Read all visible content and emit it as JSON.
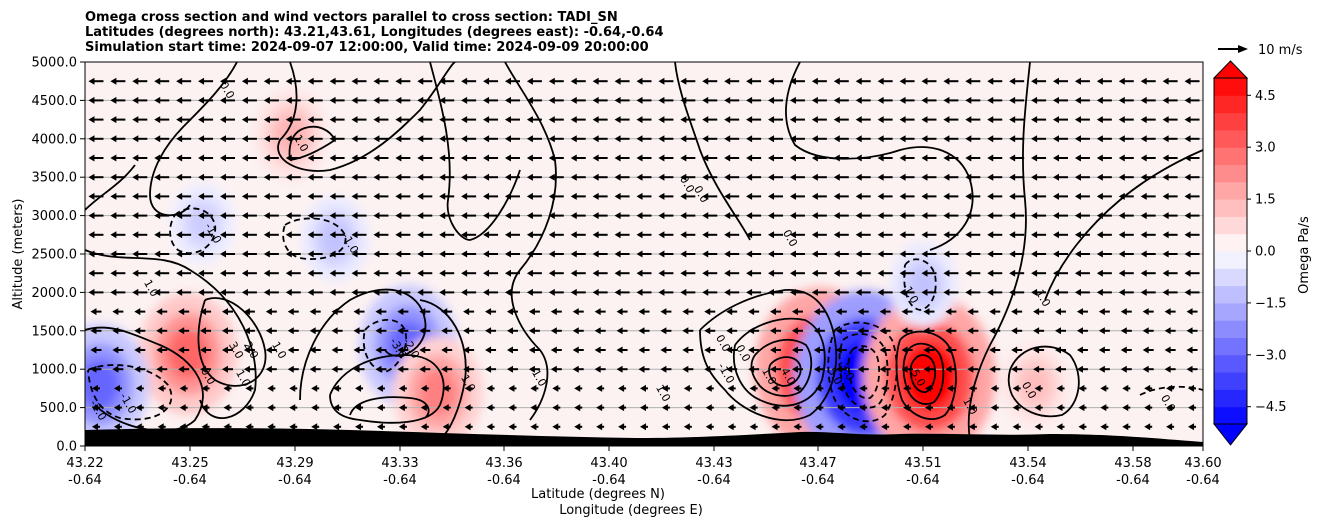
{
  "chart_data": {
    "type": "contour",
    "title_lines": [
      "Omega cross section and wind vectors parallel to cross section: TADI_SN",
      "Latitudes (degrees north): 43.21,43.61, Longitudes (degrees east): -0.64,-0.64",
      "Simulation start time: 2024-09-07 12:00:00, Valid time: 2024-09-09 20:00:00"
    ],
    "ylabel": "Altitude (meters)",
    "xlabel_lines": [
      "Latitude (degrees N)",
      "Longitude (degrees E)"
    ],
    "ylim": [
      0,
      5000
    ],
    "xlim": [
      43.22,
      43.6
    ],
    "y_ticks": [
      0,
      500,
      1000,
      1500,
      2000,
      2500,
      3000,
      3500,
      4000,
      4500,
      5000
    ],
    "y_tick_labels": [
      "0.0",
      "500.0",
      "1000.0",
      "1500.0",
      "2000.0",
      "2500.0",
      "3000.0",
      "3500.0",
      "4000.0",
      "4500.0",
      "5000.0"
    ],
    "x_ticks": [
      43.22,
      43.25,
      43.29,
      43.33,
      43.36,
      43.4,
      43.43,
      43.47,
      43.51,
      43.54,
      43.58,
      43.6
    ],
    "x_tick_labels": [
      "43.22",
      "43.25",
      "43.29",
      "43.33",
      "43.36",
      "43.40",
      "43.43",
      "43.47",
      "43.51",
      "43.54",
      "43.58",
      "43.60"
    ],
    "x_tick_sublabels": [
      "-0.64",
      "-0.64",
      "-0.64",
      "-0.64",
      "-0.64",
      "-0.64",
      "-0.64",
      "-0.64",
      "-0.64",
      "-0.64",
      "-0.64",
      "-0.64"
    ],
    "grid": "horizontal",
    "colorbar": {
      "label": "Omega Pa/s",
      "range": [
        -5.0,
        5.0
      ],
      "ticks": [
        4.5,
        3.0,
        1.5,
        0.0,
        -1.5,
        -3.0,
        -4.5
      ],
      "tick_labels": [
        "4.5",
        "3.0",
        "1.5",
        "0.0",
        "−1.5",
        "−3.0",
        "−4.5"
      ],
      "levels": 20,
      "colormap": "bwr",
      "extend": "both"
    },
    "quiver_key": {
      "label": "10 m/s",
      "speed": 10
    },
    "wind_direction": "southward",
    "omega_features": [
      {
        "lat": 43.255,
        "alt": 1200,
        "omega": 3.0
      },
      {
        "lat": 43.225,
        "alt": 800,
        "omega": -3.0
      },
      {
        "lat": 43.33,
        "alt": 1300,
        "omega": -3.0
      },
      {
        "lat": 43.34,
        "alt": 700,
        "omega": 2.5
      },
      {
        "lat": 43.29,
        "alt": 4050,
        "omega": 1.5
      },
      {
        "lat": 43.26,
        "alt": 2900,
        "omega": -1.0
      },
      {
        "lat": 43.305,
        "alt": 2700,
        "omega": -1.2
      },
      {
        "lat": 43.47,
        "alt": 1000,
        "omega": 5.0
      },
      {
        "lat": 43.485,
        "alt": 900,
        "omega": -5.5
      },
      {
        "lat": 43.507,
        "alt": 900,
        "omega": 5.0
      },
      {
        "lat": 43.505,
        "alt": 2100,
        "omega": -1.2
      },
      {
        "lat": 43.543,
        "alt": 800,
        "omega": 1.3
      }
    ],
    "contour_labels": [
      "0.0",
      "0.0",
      "1.0",
      "-1.0",
      "-1.0",
      "0.0",
      "0.0",
      "0.0",
      "-1.0",
      "1.0",
      "1.0",
      "3.0",
      "2.0",
      "1.0",
      "0.0",
      "-1.0",
      "-2.0",
      "-3.0",
      "-2.0",
      "1.0",
      "0.0",
      "-1.0",
      "0.0",
      "1.0",
      "4.0",
      "5.0",
      "-3.0",
      "-5.0",
      "1.0",
      "0.0",
      "1.0",
      "1.0",
      "-1.0"
    ]
  }
}
